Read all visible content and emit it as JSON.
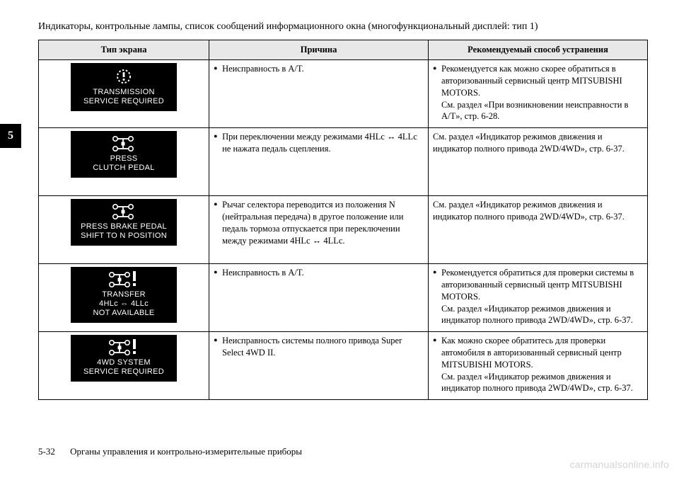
{
  "header": "Индикаторы, контрольные лампы, список сообщений информационного окна (многофункциональный дисплей: тип 1)",
  "side_tab": "5",
  "columns": {
    "c1": "Тип экрана",
    "c2": "Причина",
    "c3": "Рекомендуемый способ устранения"
  },
  "rows": [
    {
      "screen_lines": "TRANSMISSION\nSERVICE REQUIRED",
      "icon": "warning-gear",
      "cause": "Неисправность в A/T.",
      "cause_bullet": true,
      "remedy": "Рекомендуется как можно скорее обратиться в авторизованный сервисный центр MITSUBISHI MOTORS.\nСм. раздел «При возникновении неисправности в A/T», стр. 6-28.",
      "remedy_bullet": true
    },
    {
      "screen_lines": "PRESS\nCLUTCH PEDAL",
      "icon": "axle",
      "cause": "При переключении между режимами 4HLc ↔ 4LLc не нажата педаль сцепления.",
      "cause_bullet": true,
      "remedy": "См. раздел «Индикатор режимов движения и индикатор полного привода 2WD/4WD», стр. 6-37.",
      "remedy_bullet": false
    },
    {
      "screen_lines": "PRESS BRAKE PEDAL\nSHIFT TO N POSITION",
      "icon": "axle",
      "cause": "Рычаг селектора переводится из положения N (нейтральная передача) в другое положение или педаль тормоза отпускается при переключении между режимами 4HLc ↔ 4LLc.",
      "cause_bullet": true,
      "remedy": "См. раздел «Индикатор режимов движения и индикатор полного привода 2WD/4WD», стр. 6-37.",
      "remedy_bullet": false
    },
    {
      "screen_lines": "TRANSFER\n4HLc ⇔ 4LLc\nNOT AVAILABLE",
      "icon": "axle-warn",
      "cause": "Неисправность в A/T.",
      "cause_bullet": true,
      "remedy": "Рекомендуется обратиться для проверки системы в авторизованный сервисный центр MITSUBISHI MOTORS.\nСм. раздел «Индикатор режимов движения и индикатор полного привода 2WD/4WD», стр. 6-37.",
      "remedy_bullet": true
    },
    {
      "screen_lines": "4WD SYSTEM\nSERVICE REQUIRED",
      "icon": "axle-warn",
      "cause": "Неисправность системы полного привода Super Select 4WD II.",
      "cause_bullet": true,
      "remedy": "Как можно скорее обратитесь для проверки автомобиля в авторизованный сервисный центр MITSUBISHI MOTORS.\nСм. раздел «Индикатор режимов движения и индикатор полного привода 2WD/4WD», стр. 6-37.",
      "remedy_bullet": true
    }
  ],
  "footer": {
    "page": "5-32",
    "chapter": "Органы управления и контрольно-измерительные приборы"
  },
  "watermark": "carmanualsonline.info",
  "colors": {
    "header_bg": "#e8e8e8",
    "border": "#000000",
    "screen_bg": "#000000",
    "screen_fg": "#ffffff",
    "watermark": "#d4d4d4"
  }
}
